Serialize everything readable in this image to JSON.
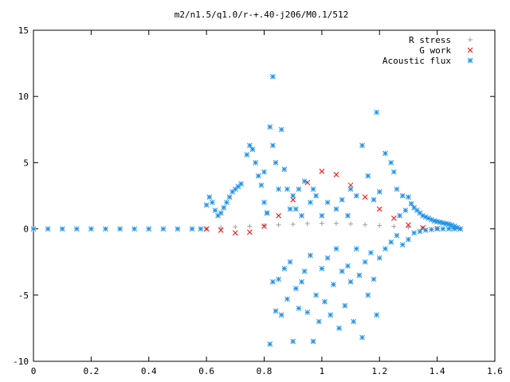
{
  "chart_data": {
    "type": "scatter",
    "title": "m2/n1.5/q1.0/r-+.40-j206/M0.1/512",
    "xlabel": "",
    "ylabel": "",
    "xlim": [
      0,
      1.6
    ],
    "ylim": [
      -10,
      15
    ],
    "x_ticks": [
      0,
      0.2,
      0.4,
      0.6,
      0.8,
      1,
      1.2,
      1.4,
      1.6
    ],
    "x_tick_labels": [
      "0",
      "0.2",
      "0.4",
      "0.6",
      "0.8",
      "1",
      "1.2",
      "1.4",
      "1.6"
    ],
    "y_ticks": [
      -10,
      -5,
      0,
      5,
      10,
      15
    ],
    "y_tick_labels": [
      "-10",
      "-5",
      "0",
      "5",
      "10",
      "15"
    ],
    "grid": false,
    "legend_position": "top-right",
    "series": [
      {
        "name": "R stress",
        "marker": "plus",
        "color": "#a0a0a0",
        "description": "samples of a smooth curve",
        "points": [
          [
            0.6,
            0.0
          ],
          [
            0.65,
            0.1
          ],
          [
            0.7,
            0.15
          ],
          [
            0.75,
            0.2
          ],
          [
            0.8,
            0.25
          ],
          [
            0.85,
            0.3
          ],
          [
            0.9,
            0.35
          ],
          [
            0.95,
            0.4
          ],
          [
            1.0,
            0.42
          ],
          [
            1.05,
            0.42
          ],
          [
            1.1,
            0.38
          ],
          [
            1.15,
            0.32
          ],
          [
            1.2,
            0.25
          ],
          [
            1.25,
            0.18
          ],
          [
            1.3,
            0.12
          ],
          [
            1.35,
            0.08
          ],
          [
            1.4,
            0.04
          ],
          [
            1.45,
            0.02
          ],
          [
            1.48,
            0.0
          ]
        ]
      },
      {
        "name": "G work",
        "marker": "x",
        "color": "#ff0000",
        "description": "samples of a smooth curve",
        "points": [
          [
            0.6,
            0.0
          ],
          [
            0.65,
            -0.1
          ],
          [
            0.7,
            -0.3
          ],
          [
            0.75,
            -0.25
          ],
          [
            0.8,
            0.2
          ],
          [
            0.85,
            1.0
          ],
          [
            0.9,
            2.2
          ],
          [
            0.95,
            3.5
          ],
          [
            1.0,
            4.35
          ],
          [
            1.05,
            4.1
          ],
          [
            1.1,
            3.3
          ],
          [
            1.15,
            2.4
          ],
          [
            1.2,
            1.5
          ],
          [
            1.25,
            0.8
          ],
          [
            1.3,
            0.3
          ],
          [
            1.35,
            0.08
          ],
          [
            1.4,
            0.02
          ],
          [
            1.48,
            0.0
          ]
        ]
      },
      {
        "name": "Acoustic flux",
        "marker": "star",
        "color": "#1e90e8",
        "points": [
          [
            0.0,
            0.0
          ],
          [
            0.05,
            0.0
          ],
          [
            0.1,
            0.0
          ],
          [
            0.15,
            0.0
          ],
          [
            0.2,
            0.0
          ],
          [
            0.25,
            0.0
          ],
          [
            0.3,
            0.0
          ],
          [
            0.35,
            0.0
          ],
          [
            0.4,
            0.0
          ],
          [
            0.45,
            0.0
          ],
          [
            0.5,
            0.0
          ],
          [
            0.55,
            0.0
          ],
          [
            0.58,
            0.0
          ],
          [
            0.6,
            1.8
          ],
          [
            0.61,
            2.4
          ],
          [
            0.62,
            2.0
          ],
          [
            0.63,
            1.4
          ],
          [
            0.64,
            1.0
          ],
          [
            0.65,
            1.2
          ],
          [
            0.66,
            1.6
          ],
          [
            0.67,
            2.0
          ],
          [
            0.68,
            2.4
          ],
          [
            0.69,
            2.8
          ],
          [
            0.7,
            3.0
          ],
          [
            0.71,
            3.2
          ],
          [
            0.72,
            3.4
          ],
          [
            0.74,
            5.6
          ],
          [
            0.75,
            6.3
          ],
          [
            0.76,
            6.0
          ],
          [
            0.77,
            5.0
          ],
          [
            0.78,
            4.0
          ],
          [
            0.79,
            3.3
          ],
          [
            0.8,
            4.3
          ],
          [
            0.8,
            2.0
          ],
          [
            0.81,
            1.2
          ],
          [
            0.81,
            1.2
          ],
          [
            0.82,
            7.7
          ],
          [
            0.83,
            6.3
          ],
          [
            0.83,
            11.5
          ],
          [
            0.84,
            5.0
          ],
          [
            0.85,
            3.0
          ],
          [
            0.86,
            7.5
          ],
          [
            0.87,
            4.5
          ],
          [
            0.88,
            3.0
          ],
          [
            0.89,
            1.5
          ],
          [
            0.9,
            2.5
          ],
          [
            0.91,
            1.5
          ],
          [
            0.92,
            3.0
          ],
          [
            0.93,
            1.0
          ],
          [
            0.94,
            3.6
          ],
          [
            0.96,
            2.0
          ],
          [
            0.97,
            3.0
          ],
          [
            0.98,
            2.5
          ],
          [
            1.0,
            1.0
          ],
          [
            1.02,
            2.0
          ],
          [
            1.05,
            1.5
          ],
          [
            1.07,
            2.2
          ],
          [
            1.09,
            1.0
          ],
          [
            1.1,
            3.0
          ],
          [
            1.12,
            2.5
          ],
          [
            1.14,
            6.3
          ],
          [
            1.16,
            4.0
          ],
          [
            1.18,
            2.2
          ],
          [
            1.19,
            8.8
          ],
          [
            1.2,
            2.8
          ],
          [
            1.22,
            5.7
          ],
          [
            1.24,
            5.0
          ],
          [
            1.25,
            4.3
          ],
          [
            1.26,
            3.0
          ],
          [
            1.27,
            1.0
          ],
          [
            1.28,
            2.5
          ],
          [
            1.29,
            1.4
          ],
          [
            1.3,
            2.4
          ],
          [
            1.31,
            1.9
          ],
          [
            1.32,
            1.6
          ],
          [
            1.33,
            1.4
          ],
          [
            1.34,
            1.2
          ],
          [
            1.35,
            1.0
          ],
          [
            1.36,
            0.9
          ],
          [
            1.37,
            0.8
          ],
          [
            1.38,
            0.7
          ],
          [
            1.39,
            0.6
          ],
          [
            1.4,
            0.55
          ],
          [
            1.41,
            0.5
          ],
          [
            1.42,
            0.45
          ],
          [
            1.43,
            0.4
          ],
          [
            1.44,
            0.35
          ],
          [
            1.45,
            0.3
          ],
          [
            1.46,
            0.2
          ],
          [
            1.47,
            0.1
          ],
          [
            1.48,
            0.0
          ],
          [
            0.82,
            -8.7
          ],
          [
            0.83,
            -4.0
          ],
          [
            0.84,
            -6.2
          ],
          [
            0.85,
            -3.8
          ],
          [
            0.86,
            -6.5
          ],
          [
            0.87,
            -3.0
          ],
          [
            0.88,
            -5.3
          ],
          [
            0.89,
            -2.5
          ],
          [
            0.9,
            -8.5
          ],
          [
            0.91,
            -4.5
          ],
          [
            0.92,
            -6.0
          ],
          [
            0.93,
            -4.0
          ],
          [
            0.94,
            -3.2
          ],
          [
            0.95,
            -6.3
          ],
          [
            0.96,
            -2.0
          ],
          [
            0.97,
            -8.5
          ],
          [
            0.98,
            -5.0
          ],
          [
            0.99,
            -7.0
          ],
          [
            1.0,
            -3.0
          ],
          [
            1.01,
            -5.5
          ],
          [
            1.02,
            -2.2
          ],
          [
            1.03,
            -6.5
          ],
          [
            1.04,
            -4.2
          ],
          [
            1.05,
            -1.5
          ],
          [
            1.06,
            -7.5
          ],
          [
            1.07,
            -3.2
          ],
          [
            1.08,
            -5.8
          ],
          [
            1.09,
            -2.8
          ],
          [
            1.1,
            -4.0
          ],
          [
            1.11,
            -7.0
          ],
          [
            1.12,
            -1.5
          ],
          [
            1.13,
            -3.5
          ],
          [
            1.14,
            -8.2
          ],
          [
            1.15,
            -2.5
          ],
          [
            1.16,
            -5.0
          ],
          [
            1.17,
            -1.8
          ],
          [
            1.18,
            -3.8
          ],
          [
            1.19,
            -6.5
          ],
          [
            1.2,
            -2.2
          ],
          [
            1.22,
            -1.5
          ],
          [
            1.24,
            -1.0
          ],
          [
            1.26,
            -0.5
          ],
          [
            1.28,
            -1.2
          ],
          [
            1.3,
            -0.8
          ],
          [
            1.32,
            -0.3
          ],
          [
            1.34,
            -0.2
          ],
          [
            1.36,
            -0.1
          ],
          [
            1.38,
            -0.05
          ],
          [
            1.4,
            0.0
          ],
          [
            1.42,
            0.0
          ],
          [
            1.44,
            0.0
          ],
          [
            1.46,
            0.0
          ]
        ]
      }
    ]
  }
}
